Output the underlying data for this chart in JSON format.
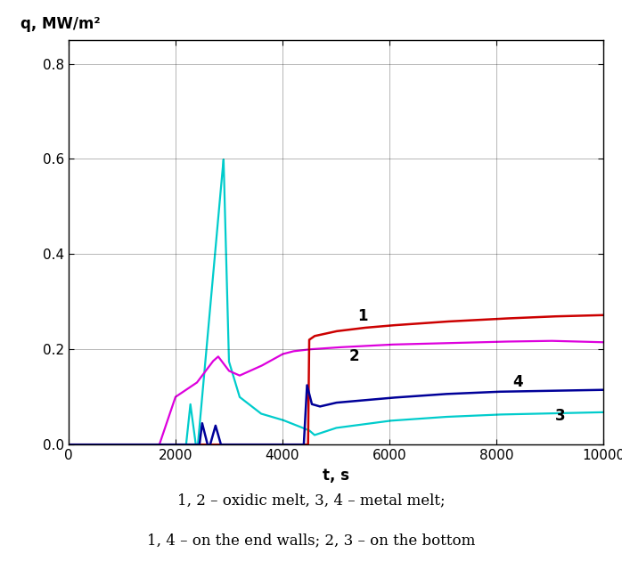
{
  "xlabel": "t, s",
  "ylabel": "q, MW/m²",
  "xlim": [
    0,
    10000
  ],
  "ylim": [
    0.0,
    0.85
  ],
  "yticks": [
    0.0,
    0.2,
    0.4,
    0.6,
    0.8
  ],
  "xticks": [
    0,
    2000,
    4000,
    6000,
    8000,
    10000
  ],
  "legend_text1": "1, 2 – oxidic melt, 3, 4 – metal melt;",
  "legend_text2": "1, 4 – on the end walls; 2, 3 – on the bottom",
  "curve1_color": "#cc0000",
  "curve2_color": "#dd00dd",
  "curve3_color": "#00cccc",
  "curve4_color": "#000099",
  "label1": "1",
  "label2": "2",
  "label3": "3",
  "label4": "4"
}
